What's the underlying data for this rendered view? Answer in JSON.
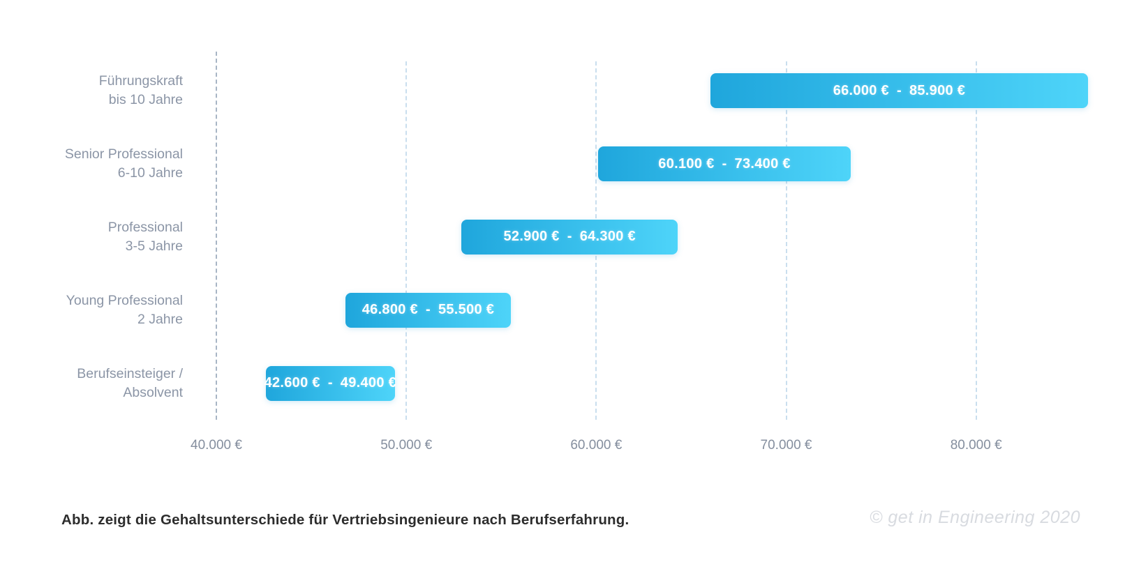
{
  "chart_data": {
    "type": "bar",
    "subtype": "horizontal-range",
    "title": "",
    "grid": true,
    "legend": false,
    "x_axis": {
      "min": 40000,
      "max": 86000,
      "ticks": [
        {
          "value": 40000,
          "label": "40.000 €"
        },
        {
          "value": 50000,
          "label": "50.000 €"
        },
        {
          "value": 60000,
          "label": "60.000 €"
        },
        {
          "value": 70000,
          "label": "70.000 €"
        },
        {
          "value": 80000,
          "label": "80.000 €"
        }
      ]
    },
    "rows": [
      {
        "label_lines": [
          "Führungskraft",
          "bis 10 Jahre"
        ],
        "min": 66000,
        "max": 85900,
        "min_label": "66.000 €",
        "separator": "-",
        "max_label": "85.900 €"
      },
      {
        "label_lines": [
          "Senior Professional",
          "6-10 Jahre"
        ],
        "min": 60100,
        "max": 73400,
        "min_label": "60.100 €",
        "separator": "-",
        "max_label": "73.400 €"
      },
      {
        "label_lines": [
          "Professional",
          "3-5 Jahre"
        ],
        "min": 52900,
        "max": 64300,
        "min_label": "52.900 €",
        "separator": "-",
        "max_label": "64.300 €"
      },
      {
        "label_lines": [
          "Young Professional",
          "2 Jahre"
        ],
        "min": 46800,
        "max": 55500,
        "min_label": "46.800 €",
        "separator": "-",
        "max_label": "55.500 €"
      },
      {
        "label_lines": [
          "Berufseinsteiger /",
          "Absolvent"
        ],
        "min": 42600,
        "max": 49400,
        "min_label": "42.600 €",
        "separator": "-",
        "max_label": "49.400 €"
      }
    ]
  },
  "colors": {
    "bar_gradient_start": "#1fa6dc",
    "bar_gradient_end": "#4ed4f9",
    "bar_text": "#ffffff",
    "category_label": "#8b95a6",
    "tick_label": "#848e9e",
    "gridline": "#c9deee",
    "axis_line": "#a8b5c5",
    "caption_text": "#2d2d2d",
    "copyright_text": "#d8dbe0"
  },
  "footer": {
    "caption": "Abb. zeigt die Gehaltsunterschiede für Vertriebsingenieure nach Berufserfahrung.",
    "copyright": "© get in Engineering 2020"
  }
}
